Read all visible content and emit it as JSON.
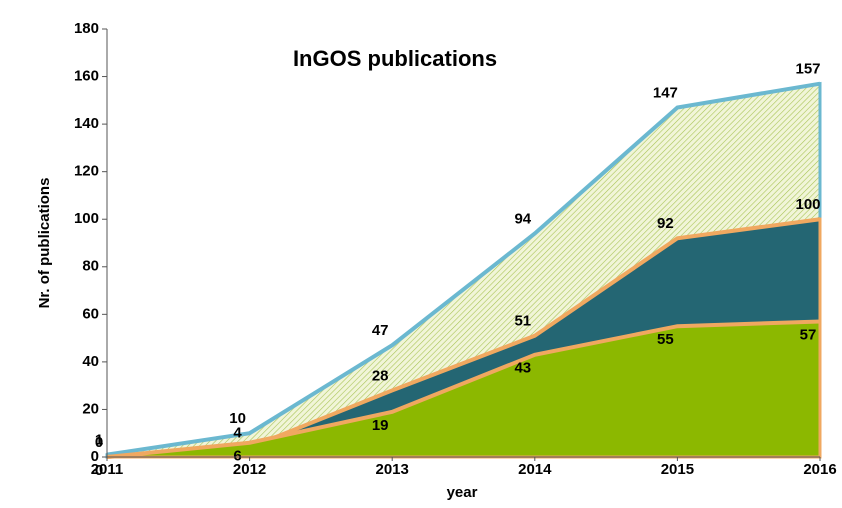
{
  "chart_data": {
    "type": "area",
    "title": "InGOS publications",
    "x_label": "year",
    "y_label": "Nr. of publications",
    "x": [
      2011,
      2012,
      2013,
      2014,
      2015,
      2016
    ],
    "xlim": [
      2011,
      2016
    ],
    "xticks": [
      2011,
      2012,
      2013,
      2014,
      2015,
      2016
    ],
    "ylim": [
      0,
      180
    ],
    "yticks": [
      0,
      20,
      40,
      60,
      80,
      100,
      120,
      140,
      160,
      180
    ],
    "grid": false,
    "series": [
      {
        "color": "hatch",
        "line_color": "#6bb8d0",
        "label_position": "above",
        "values": [
          1,
          10,
          47,
          94,
          147,
          157
        ]
      },
      {
        "color": "#246673",
        "line_color": "#f0a860",
        "label_position": "above",
        "values": [
          0,
          4,
          28,
          51,
          92,
          100
        ]
      },
      {
        "color": "#8cb800",
        "line_color": "#f0a860",
        "label_position": "below",
        "values": [
          0,
          6,
          19,
          43,
          55,
          57
        ]
      }
    ]
  }
}
